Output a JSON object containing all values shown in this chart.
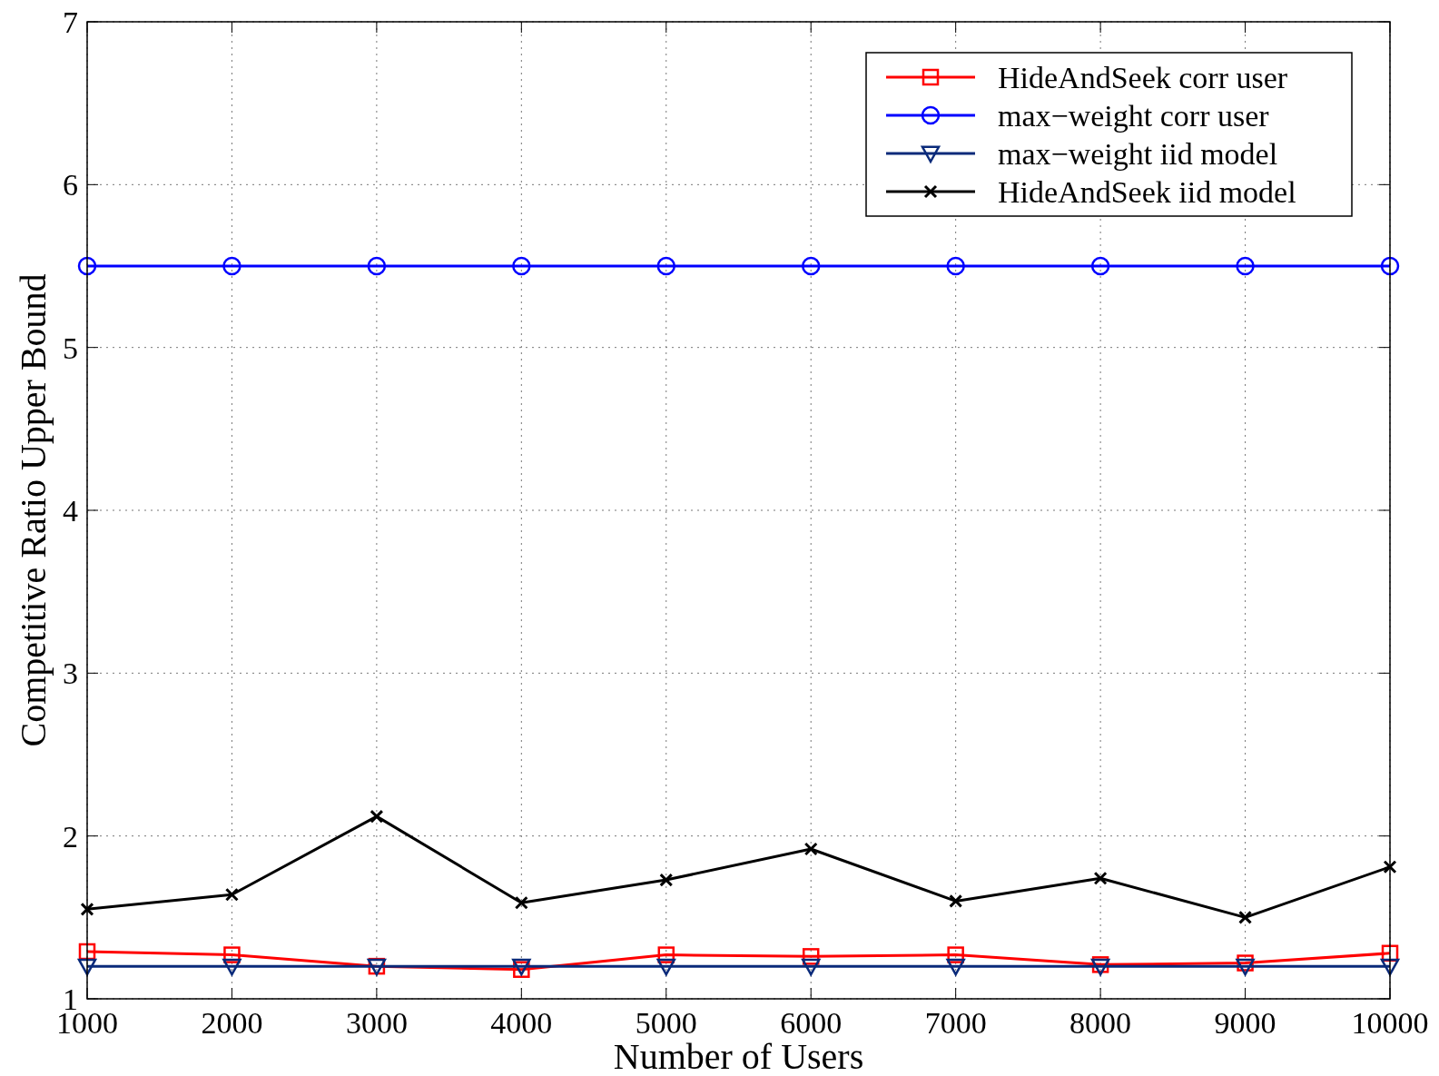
{
  "chart_data": {
    "type": "line",
    "xlabel": "Number of Users",
    "ylabel": "Competitive Ratio Upper Bound",
    "x": [
      1000,
      2000,
      3000,
      4000,
      5000,
      6000,
      7000,
      8000,
      9000,
      10000
    ],
    "xlim": [
      1000,
      10000
    ],
    "xticks": [
      1000,
      2000,
      3000,
      4000,
      5000,
      6000,
      7000,
      8000,
      9000,
      10000
    ],
    "ylim": [
      1,
      7
    ],
    "yticks": [
      1,
      2,
      3,
      4,
      5,
      6,
      7
    ],
    "grid": true,
    "legend": "top right",
    "line_style": "solid",
    "series": [
      {
        "name": "HideAndSeek corr user",
        "color": "#ff0000",
        "marker": "square",
        "values": [
          1.29,
          1.27,
          1.2,
          1.18,
          1.27,
          1.26,
          1.27,
          1.21,
          1.22,
          1.28
        ]
      },
      {
        "name": "max−weight corr user",
        "color": "#0000ff",
        "marker": "circle",
        "values": [
          5.5,
          5.5,
          5.5,
          5.5,
          5.5,
          5.5,
          5.5,
          5.5,
          5.5,
          5.5
        ]
      },
      {
        "name": "max−weight iid model",
        "color": "#0a2a7a",
        "marker": "triangle",
        "values": [
          1.2,
          1.2,
          1.2,
          1.2,
          1.2,
          1.2,
          1.2,
          1.2,
          1.2,
          1.2
        ]
      },
      {
        "name": "HideAndSeek iid model",
        "color": "#000000",
        "marker": "cross",
        "values": [
          1.55,
          1.64,
          2.12,
          1.59,
          1.73,
          1.92,
          1.6,
          1.74,
          1.5,
          1.81
        ]
      }
    ]
  }
}
